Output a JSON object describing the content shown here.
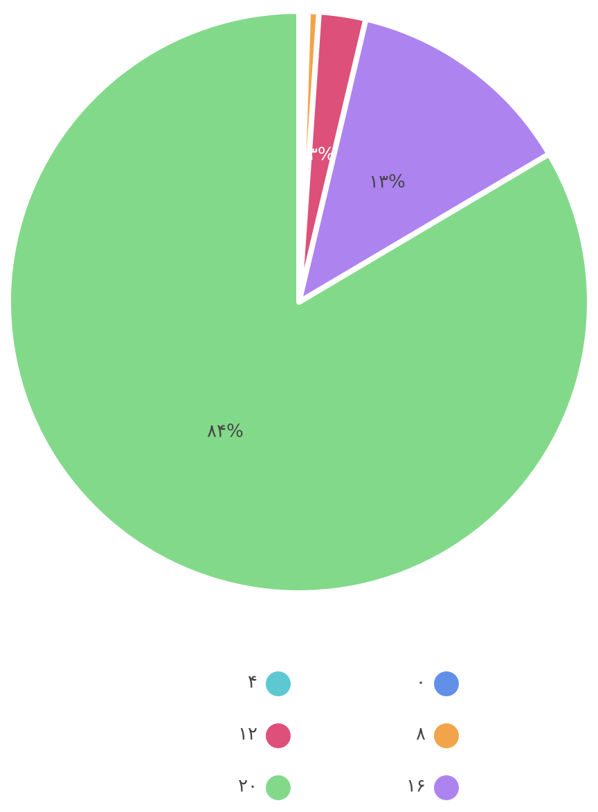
{
  "chart_data": {
    "type": "pie",
    "categories": [
      "۰",
      "۴",
      "۸",
      "۱۲",
      "۱۶",
      "۲۰"
    ],
    "values": [
      0.2,
      0.3,
      0.6,
      2.6,
      12.8,
      83.5
    ],
    "value_labels": [
      null,
      null,
      null,
      "۳%",
      "۱۳%",
      "۸۴%"
    ],
    "colors": [
      "#6290e8",
      "#5ec8d2",
      "#f2a44a",
      "#dd5079",
      "#ad83f0",
      "#83d98a"
    ]
  }
}
